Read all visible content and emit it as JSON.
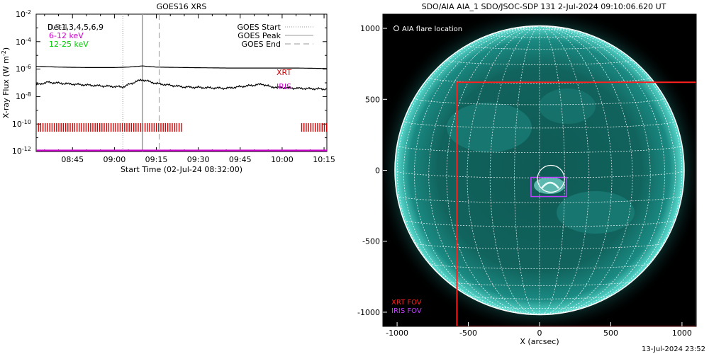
{
  "goes_panel": {
    "title": "GOES16 XRS",
    "ylabel": "X-ray Flux (W m",
    "ylabel_sup": "-2",
    "ylabel_close": ")",
    "xlabel": "Start Time (02-Jul-24 08:32:00)",
    "channel_label_black": "Det1,3,4,5,6,9",
    "channel_label_overprint": "0.5-4",
    "channel_label_magenta": "6-12 keV",
    "channel_label_green": "12-25 keV",
    "legend": [
      {
        "label": "GOES Start",
        "style": "dotted"
      },
      {
        "label": "GOES Peak",
        "style": "solid"
      },
      {
        "label": "GOES End",
        "style": "dashed"
      }
    ],
    "coverage_labels": {
      "xrt": "XRT",
      "iris": "IRIS"
    },
    "colors": {
      "xrt": "#d40000",
      "iris": "#cc00cc",
      "green": "#00cc00",
      "magenta": "#cc00cc"
    }
  },
  "chart_data": [
    {
      "type": "line",
      "title": "GOES16 XRS",
      "xlabel": "Start Time (02-Jul-24 08:32:00)",
      "ylabel": "X-ray Flux (W m-2)",
      "yscale": "log",
      "ylim": [
        1e-12,
        0.01
      ],
      "xlim": [
        "08:32",
        "10:16"
      ],
      "xticks": [
        "08:45",
        "09:00",
        "09:15",
        "09:30",
        "09:45",
        "10:00",
        "10:15"
      ],
      "yticks": [
        "10^-2",
        "10^-4",
        "10^-6",
        "10^-8",
        "10^-10",
        "10^-12"
      ],
      "series": [
        {
          "name": "0.5-4",
          "x": [
            "08:32",
            "08:40",
            "08:50",
            "09:00",
            "09:05",
            "09:10",
            "09:15",
            "09:25",
            "09:40",
            "09:55",
            "10:05",
            "10:16"
          ],
          "y": [
            1.6e-06,
            1.4e-06,
            1.3e-06,
            1.3e-06,
            1.4e-06,
            1.7e-06,
            1.4e-06,
            1.3e-06,
            1.2e-06,
            1.2e-06,
            1.2e-06,
            1.1e-06
          ]
        },
        {
          "name": "Det1,3,4,5,6,9",
          "x": [
            "08:32",
            "08:36",
            "08:45",
            "08:55",
            "09:03",
            "09:08",
            "09:10",
            "09:15",
            "09:25",
            "09:40",
            "09:53",
            "09:56",
            "10:05",
            "10:16"
          ],
          "y": [
            7e-08,
            1.1e-07,
            8e-08,
            6e-08,
            5e-08,
            1.3e-07,
            1.7e-07,
            9e-08,
            5e-08,
            4e-08,
            8e-08,
            5e-08,
            4e-08,
            3.5e-08
          ]
        },
        {
          "name": "6-12 keV",
          "x": [
            "08:32",
            "10:16"
          ],
          "y": [
            1.2e-12,
            1.2e-12
          ]
        }
      ],
      "markers": {
        "goes_start": "09:03",
        "goes_peak": "09:10",
        "goes_end": "09:16"
      },
      "coverage": [
        {
          "name": "XRT",
          "intervals": [
            [
              "08:32",
              "09:24"
            ],
            [
              "10:07",
              "10:16"
            ]
          ]
        }
      ]
    },
    {
      "type": "image",
      "title": "SDO/AIA AIA_1 SDO/JSOC-SDP 131  2-Jul-2024 09:10:06.620 UT",
      "xlabel": "X (arcsec)",
      "xlim": [
        -1100,
        1100
      ],
      "ylim": [
        -1100,
        1100
      ],
      "xticks": [
        "-1000",
        "-500",
        "0",
        "500",
        "1000"
      ],
      "yticks": [
        "1000",
        "500",
        "0",
        "-500",
        "-1000"
      ],
      "annotations": [
        "AIA flare location",
        "XRT FOV",
        "IRIS FOV"
      ],
      "flare_location": [
        80,
        -60
      ],
      "xrt_fov": {
        "x": [
          -580,
          1100
        ],
        "y": [
          -1100,
          620
        ]
      },
      "iris_fov": {
        "x": [
          -60,
          190
        ],
        "y": [
          -185,
          -50
        ]
      }
    }
  ],
  "aia_panel": {
    "title": "SDO/AIA AIA_1 SDO/JSOC-SDP 131  2-Jul-2024 09:10:06.620 UT",
    "xlabel": "X (arcsec)",
    "flare_legend": "AIA flare location",
    "xrt_fov_label": "XRT FOV",
    "iris_fov_label": "IRIS FOV",
    "colors": {
      "background": "#000000",
      "disk": "#1b8a82",
      "grid": "#ffffff",
      "xrt": "#ff2020",
      "iris": "#c040ff"
    }
  },
  "footer": {
    "timestamp": "13-Jul-2024 23:52"
  }
}
